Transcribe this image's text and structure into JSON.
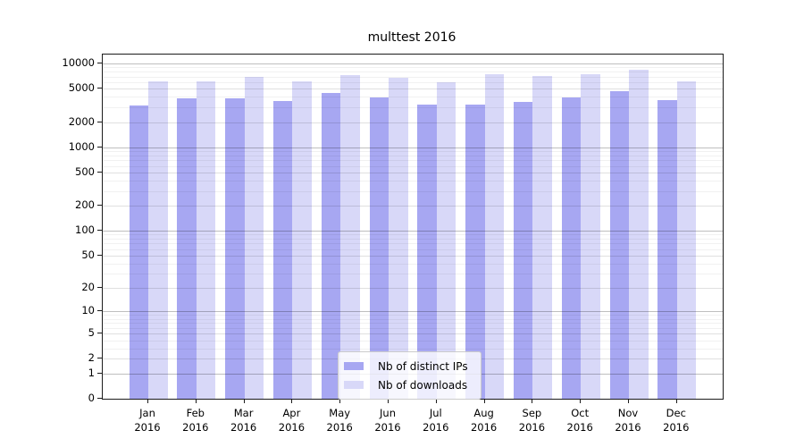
{
  "chart_data": {
    "type": "bar",
    "title": "multtest 2016",
    "scale": "symlog",
    "scale_note": "y position proportional to log10(1+y)",
    "categories": [
      "Jan",
      "Feb",
      "Mar",
      "Apr",
      "May",
      "Jun",
      "Jul",
      "Aug",
      "Sep",
      "Oct",
      "Nov",
      "Dec"
    ],
    "year": "2016",
    "series": [
      {
        "name": "Nb of distinct IPs",
        "color": "#a7a7f2",
        "values": [
          3150,
          3840,
          3840,
          3560,
          4450,
          3930,
          3230,
          3230,
          3480,
          3930,
          4670,
          3650
        ]
      },
      {
        "name": "Nb of downloads",
        "color": "#d8d8f8",
        "values": [
          6100,
          6100,
          6900,
          6100,
          7270,
          6750,
          5970,
          7450,
          7100,
          7450,
          8420,
          6100
        ]
      }
    ],
    "yticks": [
      0,
      1,
      2,
      5,
      10,
      20,
      50,
      100,
      200,
      500,
      1000,
      2000,
      5000,
      10000
    ],
    "ylim": [
      0,
      12800
    ],
    "grid": true,
    "legend_position": "lower center"
  }
}
